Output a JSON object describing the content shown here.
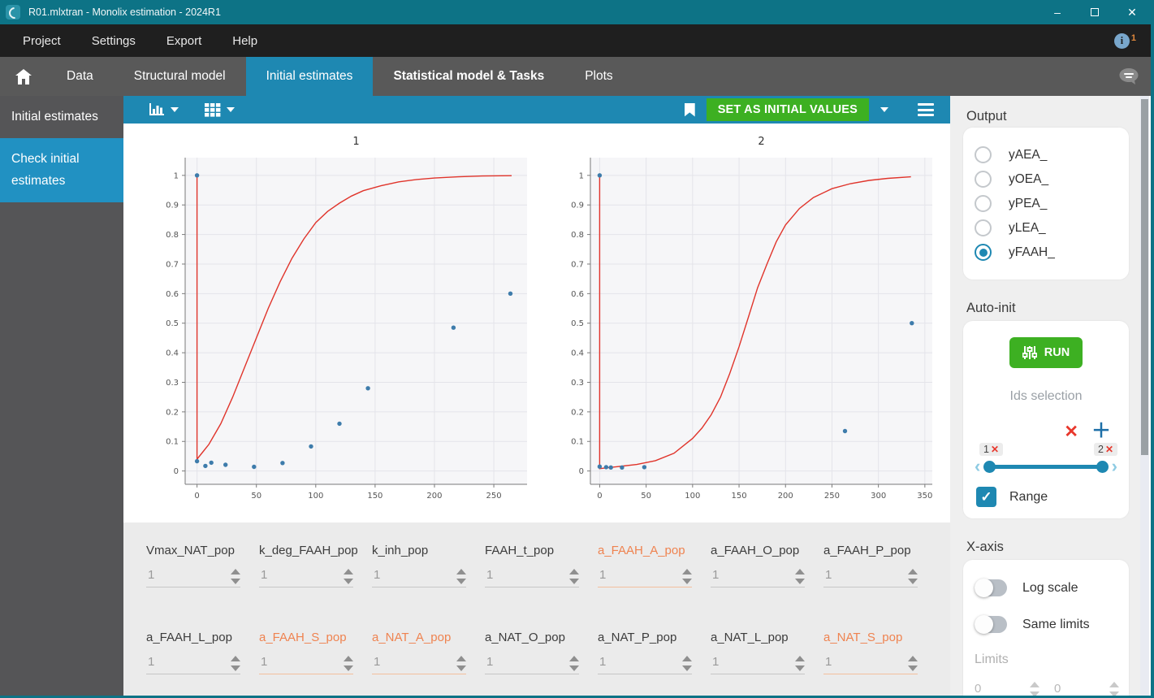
{
  "window": {
    "title": "R01.mlxtran - Monolix estimation - 2024R1"
  },
  "menu": {
    "items": [
      "Project",
      "Settings",
      "Export",
      "Help"
    ],
    "notification_count": "1"
  },
  "tabs": {
    "items": [
      "Data",
      "Structural model",
      "Initial estimates",
      "Statistical model & Tasks",
      "Plots"
    ],
    "active": "Initial estimates"
  },
  "sidebar": {
    "items": [
      {
        "label": "Initial estimates",
        "active": false
      },
      {
        "label": "Check initial estimates",
        "active": true
      }
    ]
  },
  "toolbar": {
    "set_initial_label": "SET AS INITIAL VALUES"
  },
  "right_panel": {
    "output": {
      "title": "Output",
      "options": [
        {
          "label": "yAEA_",
          "selected": false
        },
        {
          "label": "yOEA_",
          "selected": false
        },
        {
          "label": "yPEA_",
          "selected": false
        },
        {
          "label": "yLEA_",
          "selected": false
        },
        {
          "label": "yFAAH_",
          "selected": true
        }
      ]
    },
    "auto_init": {
      "title": "Auto-init",
      "run_label": "RUN",
      "ids_selection_label": "Ids selection",
      "slider": {
        "left_chip": "1",
        "right_chip": "2"
      },
      "range_label": "Range",
      "range_checked": true
    },
    "x_axis": {
      "title": "X-axis",
      "log_scale_label": "Log scale",
      "log_scale_on": false,
      "same_limits_label": "Same limits",
      "same_limits_on": false,
      "limits_label": "Limits",
      "limit_min": "0",
      "limit_max": "0"
    }
  },
  "parameters": {
    "value_default": "1",
    "rows": [
      [
        {
          "name": "Vmax_NAT_pop",
          "value": "1",
          "highlight": false
        },
        {
          "name": "k_deg_FAAH_pop",
          "value": "1",
          "highlight": false
        },
        {
          "name": "k_inh_pop",
          "value": "1",
          "highlight": false
        },
        {
          "name": "FAAH_t_pop",
          "value": "1",
          "highlight": false
        },
        {
          "name": "a_FAAH_A_pop",
          "value": "1",
          "highlight": true
        },
        {
          "name": "a_FAAH_O_pop",
          "value": "1",
          "highlight": false
        },
        {
          "name": "a_FAAH_P_pop",
          "value": "1",
          "highlight": false
        }
      ],
      [
        {
          "name": "a_FAAH_L_pop",
          "value": "1",
          "highlight": false
        },
        {
          "name": "a_FAAH_S_pop",
          "value": "1",
          "highlight": true
        },
        {
          "name": "a_NAT_A_pop",
          "value": "1",
          "highlight": true
        },
        {
          "name": "a_NAT_O_pop",
          "value": "1",
          "highlight": false
        },
        {
          "name": "a_NAT_P_pop",
          "value": "1",
          "highlight": false
        },
        {
          "name": "a_NAT_L_pop",
          "value": "1",
          "highlight": false
        },
        {
          "name": "a_NAT_S_pop",
          "value": "1",
          "highlight": true
        }
      ]
    ]
  },
  "chart_data": [
    {
      "type": "scatter",
      "title": "1",
      "xlim": [
        -10,
        278
      ],
      "ylim": [
        -0.045,
        1.06
      ],
      "xticks": [
        0,
        50,
        100,
        150,
        200,
        250
      ],
      "yticks": [
        0,
        0.1,
        0.2,
        0.3,
        0.4,
        0.5,
        0.6,
        0.7,
        0.8,
        0.9,
        1
      ],
      "grid": true,
      "curve": [
        [
          0,
          1
        ],
        [
          0,
          0.04
        ],
        [
          5,
          0.065
        ],
        [
          10,
          0.09
        ],
        [
          20,
          0.16
        ],
        [
          30,
          0.25
        ],
        [
          40,
          0.35
        ],
        [
          50,
          0.45
        ],
        [
          60,
          0.55
        ],
        [
          70,
          0.64
        ],
        [
          80,
          0.72
        ],
        [
          90,
          0.785
        ],
        [
          100,
          0.84
        ],
        [
          110,
          0.878
        ],
        [
          120,
          0.906
        ],
        [
          130,
          0.93
        ],
        [
          140,
          0.948
        ],
        [
          155,
          0.965
        ],
        [
          170,
          0.978
        ],
        [
          185,
          0.986
        ],
        [
          200,
          0.991
        ],
        [
          220,
          0.995
        ],
        [
          240,
          0.998
        ],
        [
          265,
          0.999
        ]
      ],
      "points": [
        [
          0,
          1
        ],
        [
          0,
          0.033
        ],
        [
          7,
          0.017
        ],
        [
          12,
          0.028
        ],
        [
          24,
          0.021
        ],
        [
          48,
          0.014
        ],
        [
          72,
          0.027
        ],
        [
          96,
          0.083
        ],
        [
          120,
          0.16
        ],
        [
          144,
          0.28
        ],
        [
          216,
          0.485
        ],
        [
          264,
          0.6
        ]
      ]
    },
    {
      "type": "scatter",
      "title": "2",
      "xlim": [
        -10,
        358
      ],
      "ylim": [
        -0.045,
        1.06
      ],
      "xticks": [
        0,
        50,
        100,
        150,
        200,
        250,
        300,
        350
      ],
      "yticks": [
        0,
        0.1,
        0.2,
        0.3,
        0.4,
        0.5,
        0.6,
        0.7,
        0.8,
        0.9,
        1
      ],
      "grid": true,
      "curve": [
        [
          0,
          1
        ],
        [
          0,
          0.008
        ],
        [
          20,
          0.015
        ],
        [
          40,
          0.022
        ],
        [
          60,
          0.035
        ],
        [
          80,
          0.06
        ],
        [
          100,
          0.11
        ],
        [
          110,
          0.145
        ],
        [
          120,
          0.19
        ],
        [
          130,
          0.25
        ],
        [
          140,
          0.33
        ],
        [
          150,
          0.42
        ],
        [
          160,
          0.52
        ],
        [
          170,
          0.62
        ],
        [
          180,
          0.7
        ],
        [
          190,
          0.775
        ],
        [
          200,
          0.832
        ],
        [
          215,
          0.888
        ],
        [
          230,
          0.925
        ],
        [
          250,
          0.955
        ],
        [
          270,
          0.972
        ],
        [
          290,
          0.983
        ],
        [
          310,
          0.99
        ],
        [
          335,
          0.995
        ]
      ],
      "points": [
        [
          0,
          1
        ],
        [
          0,
          0.015
        ],
        [
          7,
          0.013
        ],
        [
          12,
          0.012
        ],
        [
          24,
          0.012
        ],
        [
          48,
          0.013
        ],
        [
          264,
          0.135
        ],
        [
          336,
          0.5
        ]
      ]
    }
  ],
  "colors": {
    "titlebar_teal": "#0d7386",
    "accent_blue": "#1e88b2",
    "sidebar_active_blue": "#2191c2",
    "button_green": "#3db022",
    "highlight_orange": "#ef8350",
    "curve_red": "#e0342b",
    "point_blue": "#3e7cab"
  }
}
